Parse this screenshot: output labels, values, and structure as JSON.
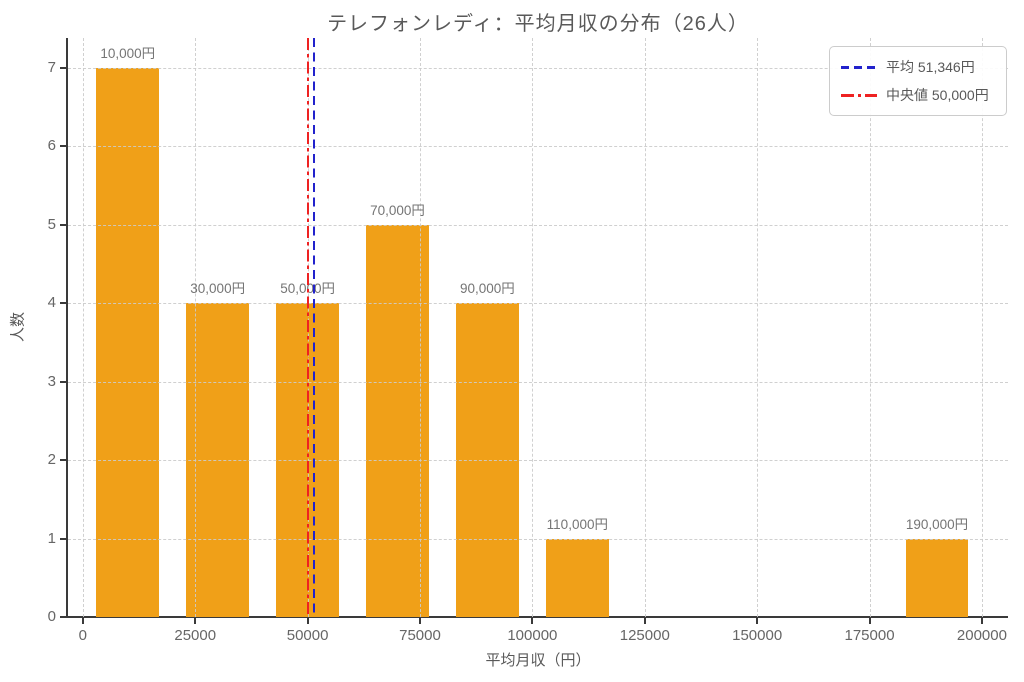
{
  "chart_data": {
    "type": "bar",
    "title": "テレフォンレディ：平均月収の分布（26人）",
    "xlabel": "平均月収（円）",
    "ylabel": "人数",
    "categories": [
      10000,
      30000,
      50000,
      70000,
      90000,
      110000,
      190000
    ],
    "values": [
      7,
      4,
      4,
      5,
      4,
      1,
      1
    ],
    "bar_labels": [
      "10,000円",
      "30,000円",
      "50,000円",
      "70,000円",
      "90,000円",
      "110,000円",
      "190,000円"
    ],
    "bar_color": "#f0a018",
    "bar_width_data": 14000,
    "xticks": [
      0,
      25000,
      50000,
      75000,
      100000,
      125000,
      150000,
      175000,
      200000
    ],
    "xtick_labels": [
      "0",
      "25000",
      "50000",
      "75000",
      "100000",
      "125000",
      "150000",
      "175000",
      "200000"
    ],
    "yticks": [
      0,
      1,
      2,
      3,
      4,
      5,
      6,
      7
    ],
    "ytick_labels": [
      "0",
      "1",
      "2",
      "3",
      "4",
      "5",
      "6",
      "7"
    ],
    "xlim": [
      -3300,
      205800
    ],
    "ylim": [
      0,
      7.38
    ],
    "grid": true,
    "legend_position": "upper right",
    "reference_lines": [
      {
        "name": "mean",
        "label": "平均 51,346円",
        "value": 51346,
        "color": "#2222cc",
        "style": "dashed"
      },
      {
        "name": "median",
        "label": "中央値 50,000円",
        "value": 50000,
        "color": "#ee2222",
        "style": "dashdot"
      }
    ],
    "colors": {
      "grid": "#cccccc",
      "spine": "#3a3a3a",
      "text": "#595959",
      "tick_text": "#666666",
      "bar_label_text": "#757575",
      "background": "#ffffff"
    }
  }
}
